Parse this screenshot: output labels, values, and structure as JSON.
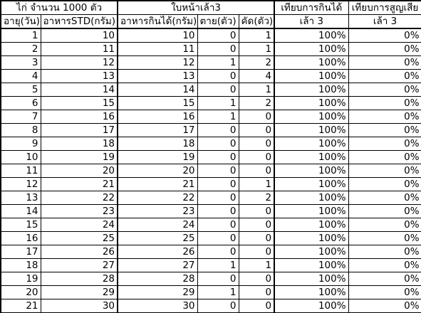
{
  "header": {
    "group1_title": "ไก่ จำนวน 1000 ตัว",
    "group2_title": "ใบหน้าเล้า3",
    "pct_eat_title": "เทียบการกินได้",
    "pct_loss_title": "เทียบการสูญเสีย",
    "col_age": "อายุ(วัน)",
    "col_std": "อาหารSTD(กรัม)",
    "col_eaten": "อาหารกินได้(กรัม)",
    "col_dead": "ตาย(ตัว)",
    "col_cull": "คัด(ตัว)",
    "pct_eat_sub": "เล้า 3",
    "pct_loss_sub": "เล้า 3"
  },
  "rows": [
    {
      "age": "1",
      "std": "10",
      "eaten": "10",
      "dead": "0",
      "cull": "1",
      "pct_eat": "100%",
      "pct_loss": "0%"
    },
    {
      "age": "2",
      "std": "11",
      "eaten": "11",
      "dead": "0",
      "cull": "1",
      "pct_eat": "100%",
      "pct_loss": "0%"
    },
    {
      "age": "3",
      "std": "12",
      "eaten": "12",
      "dead": "1",
      "cull": "2",
      "pct_eat": "100%",
      "pct_loss": "0%"
    },
    {
      "age": "4",
      "std": "13",
      "eaten": "13",
      "dead": "0",
      "cull": "4",
      "pct_eat": "100%",
      "pct_loss": "0%"
    },
    {
      "age": "5",
      "std": "14",
      "eaten": "14",
      "dead": "0",
      "cull": "1",
      "pct_eat": "100%",
      "pct_loss": "0%"
    },
    {
      "age": "6",
      "std": "15",
      "eaten": "15",
      "dead": "1",
      "cull": "2",
      "pct_eat": "100%",
      "pct_loss": "0%"
    },
    {
      "age": "7",
      "std": "16",
      "eaten": "16",
      "dead": "1",
      "cull": "0",
      "pct_eat": "100%",
      "pct_loss": "0%"
    },
    {
      "age": "8",
      "std": "17",
      "eaten": "17",
      "dead": "0",
      "cull": "0",
      "pct_eat": "100%",
      "pct_loss": "0%"
    },
    {
      "age": "9",
      "std": "18",
      "eaten": "18",
      "dead": "0",
      "cull": "0",
      "pct_eat": "100%",
      "pct_loss": "0%"
    },
    {
      "age": "10",
      "std": "19",
      "eaten": "19",
      "dead": "0",
      "cull": "0",
      "pct_eat": "100%",
      "pct_loss": "0%"
    },
    {
      "age": "11",
      "std": "20",
      "eaten": "20",
      "dead": "0",
      "cull": "0",
      "pct_eat": "100%",
      "pct_loss": "0%"
    },
    {
      "age": "12",
      "std": "21",
      "eaten": "21",
      "dead": "0",
      "cull": "1",
      "pct_eat": "100%",
      "pct_loss": "0%"
    },
    {
      "age": "13",
      "std": "22",
      "eaten": "22",
      "dead": "0",
      "cull": "2",
      "pct_eat": "100%",
      "pct_loss": "0%"
    },
    {
      "age": "14",
      "std": "23",
      "eaten": "23",
      "dead": "0",
      "cull": "0",
      "pct_eat": "100%",
      "pct_loss": "0%"
    },
    {
      "age": "15",
      "std": "24",
      "eaten": "24",
      "dead": "0",
      "cull": "0",
      "pct_eat": "100%",
      "pct_loss": "0%"
    },
    {
      "age": "16",
      "std": "25",
      "eaten": "25",
      "dead": "0",
      "cull": "0",
      "pct_eat": "100%",
      "pct_loss": "0%"
    },
    {
      "age": "17",
      "std": "26",
      "eaten": "26",
      "dead": "0",
      "cull": "0",
      "pct_eat": "100%",
      "pct_loss": "0%"
    },
    {
      "age": "18",
      "std": "27",
      "eaten": "27",
      "dead": "1",
      "cull": "1",
      "pct_eat": "100%",
      "pct_loss": "0%"
    },
    {
      "age": "19",
      "std": "28",
      "eaten": "28",
      "dead": "0",
      "cull": "0",
      "pct_eat": "100%",
      "pct_loss": "0%"
    },
    {
      "age": "20",
      "std": "29",
      "eaten": "29",
      "dead": "1",
      "cull": "0",
      "pct_eat": "100%",
      "pct_loss": "0%"
    },
    {
      "age": "21",
      "std": "30",
      "eaten": "30",
      "dead": "0",
      "cull": "0",
      "pct_eat": "100%",
      "pct_loss": "0%"
    }
  ]
}
